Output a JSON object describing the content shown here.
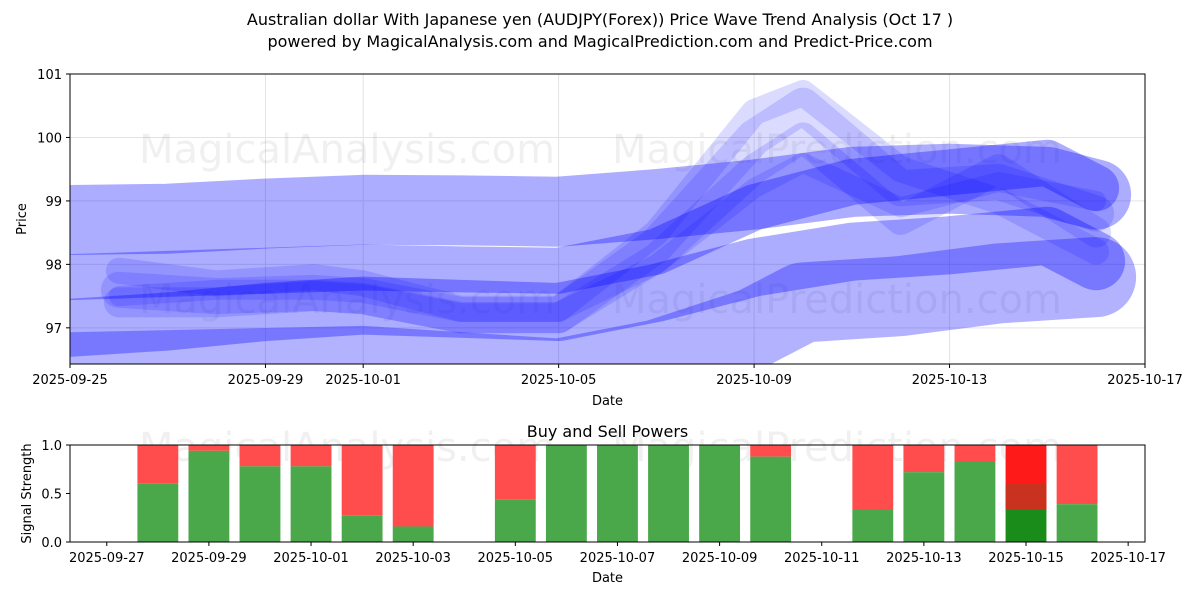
{
  "header": {
    "title": "Australian dollar With Japanese yen (AUDJPY(Forex)) Price Wave Trend Analysis (Oct 17 )",
    "subtitle": "powered by MagicalAnalysis.com and MagicalPrediction.com and Predict-Price.com"
  },
  "watermarks": [
    "MagicalAnalysis.com",
    "MagicalPrediction.com"
  ],
  "chart_data": [
    {
      "type": "line",
      "xlabel": "Date",
      "ylabel": "Price",
      "x_ticks": [
        "2025-09-25",
        "2025-09-29",
        "2025-10-01",
        "2025-10-05",
        "2025-10-09",
        "2025-10-13",
        "2025-10-17"
      ],
      "y_ticks": [
        97,
        98,
        99,
        100,
        101
      ],
      "xlim": [
        "2025-09-25",
        "2025-10-17"
      ],
      "ylim": [
        96.43,
        101
      ],
      "grid": true,
      "band_color": "#0000ff",
      "series": [
        {
          "x": [
            "2025-09-25",
            "2025-09-27",
            "2025-09-29",
            "2025-10-01",
            "2025-10-03",
            "2025-10-05",
            "2025-10-07",
            "2025-10-09",
            "2025-10-11",
            "2025-10-13",
            "2025-10-15",
            "2025-10-16"
          ],
          "y": [
            98.7,
            98.72,
            98.8,
            98.86,
            98.85,
            98.83,
            98.95,
            99.1,
            99.3,
            99.35,
            99.3,
            99.1
          ]
        },
        {
          "x": [
            "2025-09-25",
            "2025-09-27",
            "2025-09-29",
            "2025-10-01",
            "2025-10-03",
            "2025-10-05",
            "2025-10-07",
            "2025-10-09",
            "2025-10-11",
            "2025-10-13",
            "2025-10-15",
            "2025-10-16"
          ],
          "y": [
            97.0,
            97.1,
            97.25,
            97.35,
            97.3,
            97.25,
            97.55,
            97.95,
            98.2,
            98.3,
            98.45,
            98.05
          ]
        },
        {
          "x": [
            "2025-09-25",
            "2025-09-27",
            "2025-09-29",
            "2025-10-01",
            "2025-10-03",
            "2025-10-05",
            "2025-10-07",
            "2025-10-09",
            "2025-10-11",
            "2025-10-13",
            "2025-10-15",
            "2025-10-16"
          ],
          "y": [
            97.8,
            97.85,
            97.9,
            97.95,
            97.92,
            97.9,
            98.2,
            98.9,
            99.3,
            99.45,
            99.6,
            99.2
          ]
        },
        {
          "x": [
            "2025-09-26",
            "2025-09-28",
            "2025-09-30",
            "2025-10-01",
            "2025-10-03",
            "2025-10-05",
            "2025-10-07",
            "2025-10-09",
            "2025-10-10",
            "2025-10-12",
            "2025-10-14",
            "2025-10-16"
          ],
          "y": [
            97.6,
            97.5,
            97.55,
            97.5,
            97.2,
            97.2,
            98.3,
            100.0,
            100.5,
            99.2,
            99.3,
            98.8
          ]
        },
        {
          "x": [
            "2025-09-26",
            "2025-09-28",
            "2025-09-30",
            "2025-10-01",
            "2025-10-03",
            "2025-10-05",
            "2025-10-07",
            "2025-10-09",
            "2025-10-10",
            "2025-10-12",
            "2025-10-14",
            "2025-10-16"
          ],
          "y": [
            97.4,
            97.4,
            97.5,
            97.45,
            97.15,
            97.15,
            98.1,
            99.5,
            100.0,
            98.7,
            99.5,
            98.5
          ]
        },
        {
          "x": [
            "2025-09-26",
            "2025-09-28",
            "2025-09-30",
            "2025-10-01",
            "2025-10-03",
            "2025-10-05",
            "2025-10-07",
            "2025-10-09",
            "2025-10-10",
            "2025-10-12",
            "2025-10-14",
            "2025-10-16"
          ],
          "y": [
            97.9,
            97.7,
            97.8,
            97.7,
            97.3,
            97.3,
            98.5,
            100.4,
            100.7,
            99.5,
            99.0,
            98.2
          ]
        },
        {
          "x": [
            "2025-09-26",
            "2025-09-28",
            "2025-09-30",
            "2025-10-01",
            "2025-10-03",
            "2025-10-05",
            "2025-10-07",
            "2025-10-09",
            "2025-10-10",
            "2025-10-12",
            "2025-10-14",
            "2025-10-16"
          ],
          "y": [
            97.5,
            97.6,
            97.6,
            97.55,
            97.25,
            97.25,
            98.0,
            99.2,
            99.6,
            98.9,
            99.3,
            99.0
          ]
        },
        {
          "x": [
            "2025-09-25",
            "2025-10-01",
            "2025-10-05",
            "2025-10-07",
            "2025-10-09",
            "2025-10-10",
            "2025-10-12",
            "2025-10-14",
            "2025-10-16"
          ],
          "y": [
            96.3,
            96.4,
            96.2,
            96.5,
            97.0,
            97.4,
            97.5,
            97.7,
            97.8
          ]
        }
      ]
    },
    {
      "type": "bar",
      "title": "Buy and Sell Powers",
      "xlabel": "Date",
      "ylabel": "Signal Strength",
      "x_ticks": [
        "2025-09-27",
        "2025-09-29",
        "2025-10-01",
        "2025-10-03",
        "2025-10-05",
        "2025-10-07",
        "2025-10-09",
        "2025-10-11",
        "2025-10-13",
        "2025-10-15",
        "2025-10-17"
      ],
      "y_ticks": [
        "0.0",
        "0.5",
        "1.0"
      ],
      "ylim": [
        0,
        1
      ],
      "buy_color": "#4aa84a",
      "sell_color": "#ff4c4c",
      "dates": [
        "2025-09-28",
        "2025-09-29",
        "2025-09-30",
        "2025-10-01",
        "2025-10-02",
        "2025-10-03",
        "2025-10-05",
        "2025-10-06",
        "2025-10-07",
        "2025-10-08",
        "2025-10-09",
        "2025-10-10",
        "2025-10-12",
        "2025-10-13",
        "2025-10-14",
        "2025-10-15",
        "2025-10-16"
      ],
      "series": [
        {
          "name": "Buy",
          "values": [
            0.6,
            0.94,
            0.78,
            0.78,
            0.27,
            0.16,
            0.44,
            1.0,
            1.0,
            1.0,
            1.0,
            0.88,
            0.33,
            0.72,
            0.83,
            0.33,
            0.39
          ]
        },
        {
          "name": "Sell",
          "values": [
            0.4,
            0.06,
            0.22,
            0.22,
            0.73,
            0.84,
            0.56,
            0.0,
            0.0,
            0.0,
            0.0,
            0.12,
            0.67,
            0.28,
            0.17,
            0.67,
            0.61
          ]
        }
      ],
      "highlight": {
        "date": "2025-10-15",
        "buy_color": "#1a8c1a",
        "sell_color": "#ff1a1a",
        "mid_color": "#c8321e",
        "mid_value": 0.6
      }
    }
  ]
}
